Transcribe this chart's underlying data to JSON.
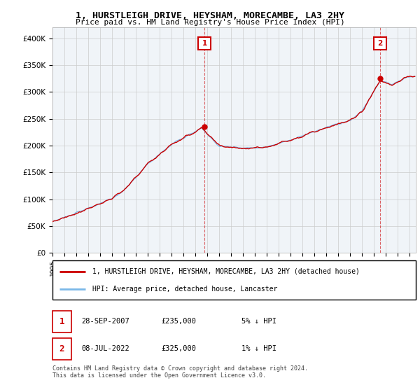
{
  "title": "1, HURSTLEIGH DRIVE, HEYSHAM, MORECAMBE, LA3 2HY",
  "subtitle": "Price paid vs. HM Land Registry's House Price Index (HPI)",
  "ylim": [
    0,
    420000
  ],
  "yticks": [
    0,
    50000,
    100000,
    150000,
    200000,
    250000,
    300000,
    350000,
    400000
  ],
  "ytick_labels": [
    "£0",
    "£50K",
    "£100K",
    "£150K",
    "£200K",
    "£250K",
    "£300K",
    "£350K",
    "£400K"
  ],
  "sale1_year": 2007.75,
  "sale1_price": 235000,
  "sale2_year": 2022.5,
  "sale2_price": 325000,
  "hpi_color": "#7ab8e8",
  "price_color": "#cc0000",
  "legend_label1": "1, HURSTLEIGH DRIVE, HEYSHAM, MORECAMBE, LA3 2HY (detached house)",
  "legend_label2": "HPI: Average price, detached house, Lancaster",
  "footer": "Contains HM Land Registry data © Crown copyright and database right 2024.\nThis data is licensed under the Open Government Licence v3.0.",
  "xlim_start": 1995,
  "xlim_end": 2025.5,
  "bg_color": "#f0f4f8"
}
